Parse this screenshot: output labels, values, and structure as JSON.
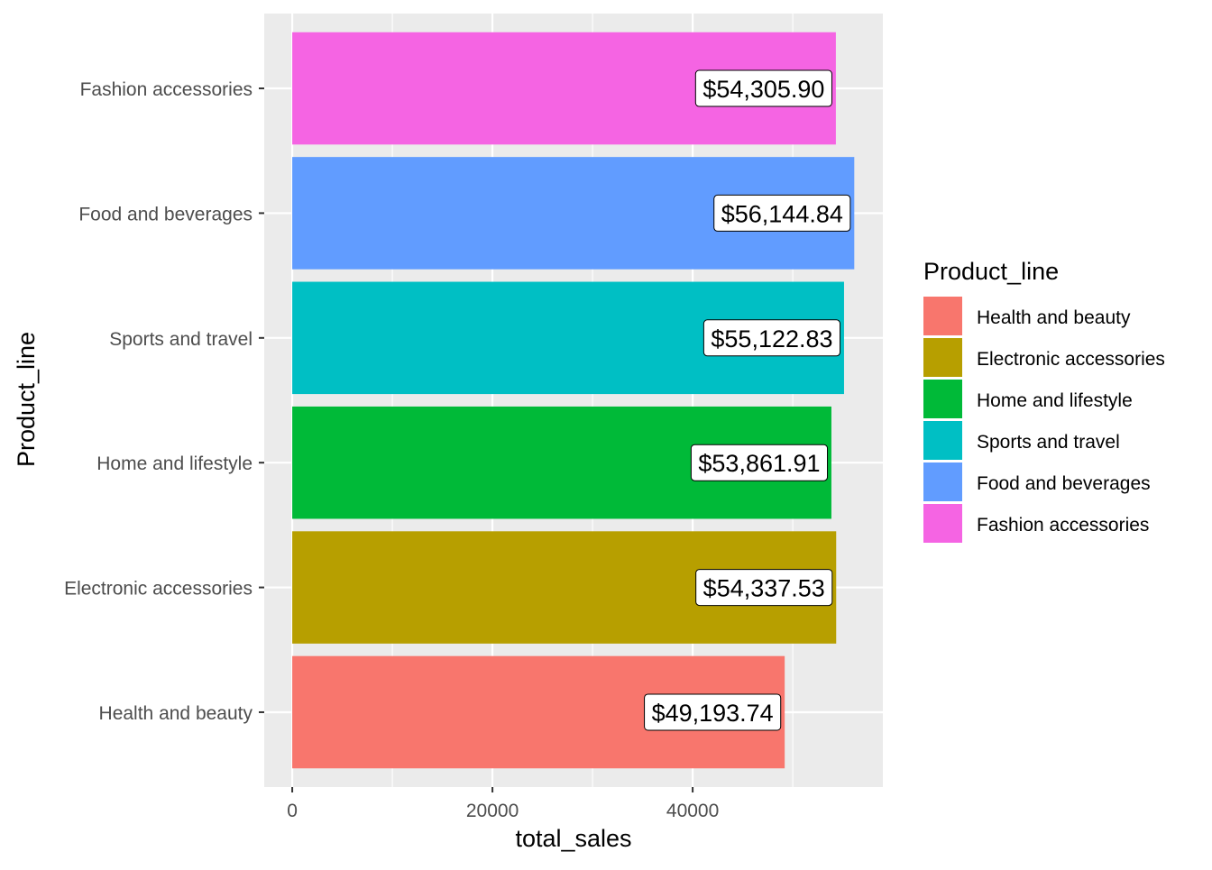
{
  "chart_data": {
    "type": "bar",
    "orientation": "horizontal",
    "categories": [
      "Health and beauty",
      "Electronic accessories",
      "Home and lifestyle",
      "Sports and travel",
      "Food and beverages",
      "Fashion accessories"
    ],
    "values": [
      49193.74,
      54337.53,
      53861.91,
      55122.83,
      56144.84,
      54305.9
    ],
    "value_labels": [
      "$49,193.74",
      "$54,337.53",
      "$53,861.91",
      "$55,122.83",
      "$56,144.84",
      "$54,305.90"
    ],
    "colors": [
      "#F8766D",
      "#B79F00",
      "#00BA38",
      "#00BFC4",
      "#619CFF",
      "#F564E3"
    ],
    "xlabel": "total_sales",
    "ylabel": "Product_line",
    "xlim": [
      -2800,
      59000
    ],
    "x_ticks": [
      0,
      20000,
      40000
    ],
    "x_tick_labels": [
      "0",
      "20000",
      "40000"
    ],
    "grid": true,
    "panel_background": "#EBEBEB",
    "legend": {
      "title": "Product_line",
      "position": "right",
      "items": [
        {
          "label": "Health and beauty",
          "color": "#F8766D"
        },
        {
          "label": "Electronic accessories",
          "color": "#B79F00"
        },
        {
          "label": "Home and lifestyle",
          "color": "#00BA38"
        },
        {
          "label": "Sports and travel",
          "color": "#00BFC4"
        },
        {
          "label": "Food and beverages",
          "color": "#619CFF"
        },
        {
          "label": "Fashion accessories",
          "color": "#F564E3"
        }
      ]
    }
  }
}
